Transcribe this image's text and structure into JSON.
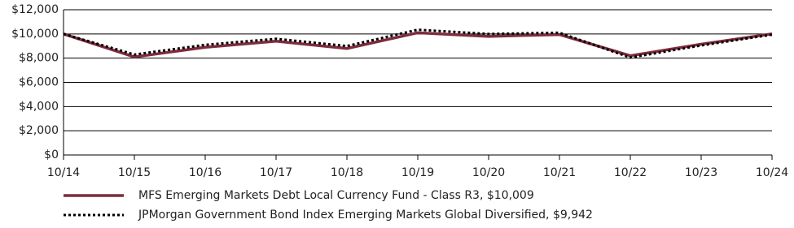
{
  "chart_data": {
    "type": "line",
    "categories": [
      "10/14",
      "10/15",
      "10/16",
      "10/17",
      "10/18",
      "10/19",
      "10/20",
      "10/21",
      "10/22",
      "10/23",
      "10/24"
    ],
    "series": [
      {
        "name": "MFS Emerging Markets Debt Local Currency Fund - Class R3, $10,009",
        "color": "#7d2c3d",
        "style": "solid",
        "values": [
          10000,
          8100,
          8900,
          9400,
          8800,
          10100,
          9800,
          9950,
          8200,
          9150,
          10009
        ]
      },
      {
        "name": "JPMorgan Government Bond Index Emerging Markets Global Diversified, $9,942",
        "color": "#000000",
        "style": "dotted",
        "values": [
          10000,
          8300,
          9100,
          9600,
          9000,
          10350,
          10000,
          10100,
          8050,
          9050,
          9942
        ]
      }
    ],
    "ylim": [
      0,
      12000
    ],
    "yticks": [
      {
        "value": 0,
        "label": "$0"
      },
      {
        "value": 2000,
        "label": "$2,000"
      },
      {
        "value": 4000,
        "label": "$4,000"
      },
      {
        "value": 6000,
        "label": "$6,000"
      },
      {
        "value": 8000,
        "label": "$8,000"
      },
      {
        "value": 10000,
        "label": "$10,000"
      },
      {
        "value": 12000,
        "label": "$12,000"
      }
    ],
    "grid": true
  }
}
